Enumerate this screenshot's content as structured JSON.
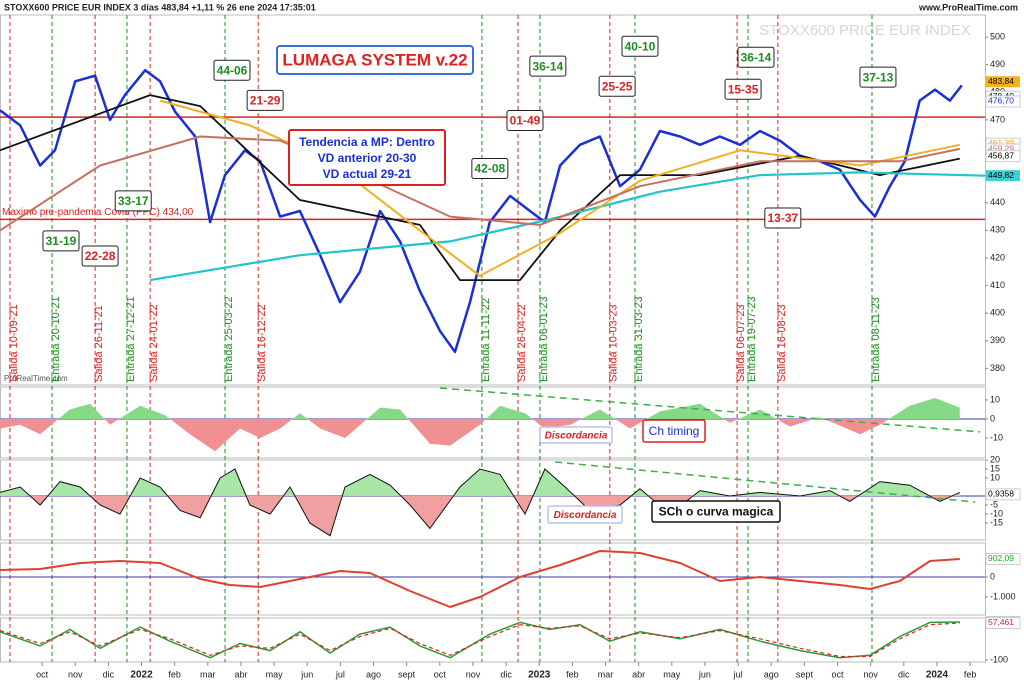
{
  "chart_data": [
    {
      "type": "line",
      "title": "STOXX600 PRICE EUR INDEX 3 días 483,84 +1,11 % 26 ene 2024 17:35:01",
      "source": "www.ProRealTime.com",
      "watermark": "STOXX600 PRICE EUR INDEX",
      "logo": "ProRealTime.com",
      "system_title": "LUMAGA SYSTEM v.22",
      "info": [
        "Tendencia a MP: Dentro",
        "VD anterior 20-30",
        "VD actual 29-21"
      ],
      "xlim": [
        -1.27,
        28.45
      ],
      "xticks": [
        {
          "value": 0,
          "label": "oct"
        },
        {
          "value": 1,
          "label": "nov"
        },
        {
          "value": 2,
          "label": "dic"
        },
        {
          "value": 3,
          "label": "2022"
        },
        {
          "value": 4,
          "label": "feb"
        },
        {
          "value": 5,
          "label": "mar"
        },
        {
          "value": 6,
          "label": "abr"
        },
        {
          "value": 7,
          "label": "may"
        },
        {
          "value": 8,
          "label": "jun"
        },
        {
          "value": 9,
          "label": "jul"
        },
        {
          "value": 10,
          "label": "ago"
        },
        {
          "value": 11,
          "label": "sept"
        },
        {
          "value": 12,
          "label": "oct"
        },
        {
          "value": 13,
          "label": "nov"
        },
        {
          "value": 14,
          "label": "dic"
        },
        {
          "value": 15,
          "label": "2023"
        },
        {
          "value": 16,
          "label": "feb"
        },
        {
          "value": 17,
          "label": "mar"
        },
        {
          "value": 18,
          "label": "abr"
        },
        {
          "value": 19,
          "label": "may"
        },
        {
          "value": 20,
          "label": "jun"
        },
        {
          "value": 21,
          "label": "jul"
        },
        {
          "value": 22,
          "label": "ago"
        },
        {
          "value": 23,
          "label": "sept"
        },
        {
          "value": 24,
          "label": "oct"
        },
        {
          "value": 25,
          "label": "nov"
        },
        {
          "value": 26,
          "label": "dic"
        },
        {
          "value": 27,
          "label": "2024"
        },
        {
          "value": 28,
          "label": "feb"
        }
      ],
      "ylim": [
        374,
        508
      ],
      "yticks": [
        380,
        390,
        400,
        410,
        420,
        430,
        440,
        450,
        460,
        470,
        480,
        490,
        500
      ],
      "series": [
        {
          "color": "#1a2fd6",
          "width": 2.5,
          "x": [
            -1.27,
            -0.66,
            -0.06,
            0.39,
            1.0,
            1.6,
            2.05,
            2.5,
            3.11,
            3.56,
            4.01,
            4.62,
            5.07,
            5.52,
            6.12,
            6.58,
            7.18,
            7.78,
            8.39,
            8.99,
            9.59,
            10.2,
            10.8,
            11.4,
            12.01,
            12.46,
            12.91,
            13.51,
            14.12,
            14.72,
            15.17,
            15.63,
            16.23,
            16.83,
            17.44,
            18.04,
            18.64,
            19.25,
            19.85,
            20.45,
            21.06,
            21.66,
            22.26,
            22.87,
            23.47,
            24.07,
            24.68,
            25.13,
            25.58,
            26.03,
            26.48,
            26.94,
            27.39,
            27.75
          ],
          "values": [
            473.5,
            468,
            453.5,
            459,
            484,
            486,
            470,
            479,
            488,
            484,
            473,
            464,
            433,
            450,
            459,
            455,
            435,
            437,
            421,
            404,
            415,
            437,
            426,
            408,
            393.5,
            386,
            404,
            433,
            442.5,
            437,
            433,
            453.5,
            461,
            464,
            446,
            452,
            466,
            464,
            461,
            464,
            461,
            466,
            462.5,
            457,
            455,
            452,
            441,
            435,
            446,
            455,
            477,
            481,
            477,
            482.5
          ]
        },
        {
          "color": "#111111",
          "width": 1.8,
          "x": [
            -1.27,
            3.26,
            4.77,
            7.78,
            11.4,
            12.61,
            14.42,
            15.63,
            17.44,
            19.85,
            22.87,
            25.28,
            27.69
          ],
          "values": [
            459,
            479,
            475,
            441,
            432,
            412,
            412,
            430,
            450,
            450,
            457,
            450,
            456
          ]
        },
        {
          "color": "#22c4c8",
          "width": 2.2,
          "x": [
            3.26,
            7.78,
            12.31,
            15.32,
            18.64,
            21.66,
            24.68,
            28.45
          ],
          "values": [
            412,
            421,
            426,
            434,
            444,
            450,
            451,
            449.8
          ]
        },
        {
          "color": "#f0b020",
          "width": 2,
          "x": [
            3.56,
            6.27,
            8.69,
            11.4,
            13.21,
            15.63,
            18.04,
            21.06,
            24.68,
            27.69
          ],
          "values": [
            477,
            468,
            455,
            430,
            413.5,
            429,
            448,
            459,
            453.5,
            461
          ]
        },
        {
          "color": "#c87060",
          "width": 2,
          "x": [
            -1.27,
            1.75,
            4.77,
            7.18,
            9.59,
            12.31,
            15.02,
            18.04,
            21.66,
            25.88,
            27.69
          ],
          "values": [
            430,
            453.5,
            464,
            462.5,
            450,
            435,
            432,
            446,
            455,
            455,
            459.5
          ]
        }
      ],
      "hlines": [
        {
          "value": 471,
          "color": "#e02020"
        },
        {
          "value": 434,
          "color": "#e02020",
          "label": "Maximo pre-pandemia Covid (PPC) 434,00"
        }
      ],
      "last_labels": [
        {
          "value": 483.84,
          "label": "483,84",
          "color": "#000000",
          "bg": "#f5b21a"
        },
        {
          "value": 478.4,
          "label": "478,40",
          "color": "#000000"
        },
        {
          "value": 476.7,
          "label": "476,70",
          "color": "#1a2fd6"
        },
        {
          "value": 461.39,
          "label": "461,39",
          "color": "#f0a020"
        },
        {
          "value": 459.29,
          "label": "459,29",
          "color": "#c87060"
        },
        {
          "value": 456.87,
          "label": "456,87",
          "color": "#000000"
        },
        {
          "value": 449.82,
          "label": "449,82",
          "color": "#000000",
          "bg": "#40d0d0"
        }
      ],
      "signals": [
        {
          "x": -0.97,
          "label": "Salida 10-09-21",
          "color": "#e02020"
        },
        {
          "x": 0.3,
          "label": "Entrada 20-10-21",
          "color": "#1e8c1e"
        },
        {
          "x": 1.6,
          "label": "Salida 26-11-21",
          "color": "#e02020"
        },
        {
          "x": 2.56,
          "label": "Entrada 27-12-21",
          "color": "#1e8c1e"
        },
        {
          "x": 3.26,
          "label": "Salida 24-01-22",
          "color": "#e02020"
        },
        {
          "x": 5.52,
          "label": "Entrada 25-03-22",
          "color": "#1e8c1e"
        },
        {
          "x": 6.52,
          "label": "Salida 16-12-22",
          "color": "#e02020"
        },
        {
          "x": 13.27,
          "label": "Entrada 11-11-22",
          "color": "#1e8c1e"
        },
        {
          "x": 14.36,
          "label": "Salida 26-04-22",
          "color": "#e02020"
        },
        {
          "x": 15.02,
          "label": "Entrada 06-01-23",
          "color": "#1e8c1e"
        },
        {
          "x": 17.13,
          "label": "Salida 10-03-23",
          "color": "#e02020"
        },
        {
          "x": 17.89,
          "label": "Entrada 31-03-23",
          "color": "#1e8c1e"
        },
        {
          "x": 20.97,
          "label": "Salida 06-07-23",
          "color": "#e02020"
        },
        {
          "x": 21.3,
          "label": "Entrada 19-07-23",
          "color": "#1e8c1e"
        },
        {
          "x": 22.2,
          "label": "Salida 16-08-23",
          "color": "#e02020"
        },
        {
          "x": 25.04,
          "label": "Entrada 08-11-23",
          "color": "#1e8c1e"
        }
      ],
      "boxes": [
        {
          "x": 0.57,
          "y": 426.2,
          "label": "31-19",
          "color": "#1e8c1e"
        },
        {
          "x": 1.75,
          "y": 420.7,
          "label": "22-28",
          "color": "#e02020"
        },
        {
          "x": 2.75,
          "y": 440.7,
          "label": "33-17",
          "color": "#1e8c1e"
        },
        {
          "x": 5.73,
          "y": 488,
          "label": "44-06",
          "color": "#1e8c1e"
        },
        {
          "x": 6.73,
          "y": 477.1,
          "label": "21-29",
          "color": "#e02020"
        },
        {
          "x": 14.57,
          "y": 469.8,
          "label": "01-49",
          "color": "#e02020"
        },
        {
          "x": 15.26,
          "y": 489.5,
          "label": "36-14",
          "color": "#1e8c1e"
        },
        {
          "x": 13.51,
          "y": 452.4,
          "label": "42-08",
          "color": "#1e8c1e"
        },
        {
          "x": 17.35,
          "y": 482.2,
          "label": "25-25",
          "color": "#e02020"
        },
        {
          "x": 18.04,
          "y": 496.7,
          "label": "40-10",
          "color": "#1e8c1e"
        },
        {
          "x": 21.15,
          "y": 481.1,
          "label": "15-35",
          "color": "#e02020"
        },
        {
          "x": 21.54,
          "y": 492.7,
          "label": "36-14",
          "color": "#1e8c1e"
        },
        {
          "x": 22.35,
          "y": 434.5,
          "label": "13-37",
          "color": "#e02020"
        },
        {
          "x": 25.22,
          "y": 485.5,
          "label": "37-13",
          "color": "#1e8c1e"
        }
      ]
    },
    {
      "type": "area",
      "ylim": [
        -20.5,
        16.8
      ],
      "yticks": [
        -10,
        0,
        10
      ],
      "up_color": "#86d986",
      "down_color": "#f09090",
      "x": [
        -1.27,
        -0.66,
        -0.06,
        0.84,
        1.45,
        2.05,
        2.96,
        3.71,
        4.46,
        5.22,
        5.97,
        6.58,
        7.18,
        7.78,
        8.39,
        9.14,
        10.2,
        10.8,
        11.7,
        12.31,
        13.21,
        13.82,
        14.57,
        15.17,
        15.93,
        16.83,
        17.74,
        18.64,
        19.85,
        20.75,
        21.66,
        22.56,
        23.47,
        24.68,
        25.28,
        26.18,
        26.94,
        27.69
      ],
      "values": [
        -5,
        -3,
        -8,
        5,
        8,
        -3,
        7,
        2,
        -8,
        -17,
        -5,
        -10,
        -5,
        3,
        -5,
        -10,
        6,
        5,
        -13,
        -14,
        -3,
        7,
        3,
        -5,
        -3,
        5,
        -5,
        4,
        8,
        -2,
        5,
        -4,
        1,
        -8,
        -3,
        7,
        11,
        6
      ],
      "trend": {
        "x": [
          12.01,
          28.3
        ],
        "values": [
          16.3,
          -6.8
        ]
      },
      "notes": [
        "Discordancia",
        "Ch timing"
      ]
    },
    {
      "type": "area",
      "ylim": [
        -24.4,
        20
      ],
      "yticks": [
        -15,
        -10,
        -5,
        0,
        10,
        15,
        20
      ],
      "up_color": "#a8e6a8",
      "down_color": "#f0a0a0",
      "line_color": "#111111",
      "x": [
        -1.27,
        -0.66,
        -0.06,
        0.54,
        1.15,
        1.75,
        2.35,
        2.96,
        3.56,
        4.16,
        4.77,
        5.37,
        5.82,
        6.27,
        6.88,
        7.48,
        8.08,
        8.69,
        9.14,
        9.89,
        10.5,
        11.1,
        11.7,
        12.61,
        13.21,
        13.82,
        14.57,
        15.17,
        15.78,
        16.53,
        17.44,
        18.04,
        18.94,
        19.85,
        20.75,
        21.66,
        22.87,
        23.77,
        24.37,
        25.28,
        26.18,
        27.09,
        27.69
      ],
      "values": [
        2,
        5,
        -5,
        8,
        5,
        -5,
        -10,
        10,
        5,
        -8,
        -12,
        10,
        15,
        -5,
        -10,
        5,
        -15,
        -22,
        5,
        12,
        6,
        -5,
        -18,
        5,
        15,
        12,
        -10,
        15,
        5,
        -8,
        -5,
        4,
        -10,
        3,
        0,
        2,
        0,
        3,
        -3,
        8,
        6,
        -3,
        2
      ],
      "trend": {
        "x": [
          15.48,
          28.15
        ],
        "values": [
          18.9,
          -3.3
        ]
      },
      "notes": [
        "Discordancia",
        "SCh o curva magica"
      ],
      "last_labels": [
        {
          "value": 0.9358,
          "label": "0,9358",
          "color": "#000000"
        }
      ]
    },
    {
      "type": "line",
      "ylim": [
        -1900,
        1700
      ],
      "yticks": [
        0,
        {
          "value": -1000,
          "label": "-1.000"
        }
      ],
      "series": [
        {
          "color": "#e04030",
          "width": 2,
          "x": [
            -1.27,
            -0.06,
            1.15,
            2.35,
            3.56,
            4.77,
            5.67,
            6.58,
            7.78,
            8.99,
            9.89,
            11.1,
            12.31,
            13.21,
            14.42,
            15.63,
            16.83,
            18.04,
            19.25,
            20.45,
            21.66,
            22.87,
            24.07,
            24.98,
            25.88,
            26.79,
            27.69
          ],
          "values": [
            350,
            400,
            700,
            800,
            700,
            -100,
            -400,
            -500,
            -100,
            300,
            200,
            -700,
            -1500,
            -1000,
            0,
            600,
            1300,
            1200,
            700,
            -200,
            0,
            -200,
            -400,
            -600,
            -200,
            800,
            902.09
          ]
        }
      ],
      "last_labels": [
        {
          "value": 902.09,
          "label": "902,09",
          "color": "#1fa81f"
        }
      ]
    },
    {
      "type": "line",
      "ylim": [
        -108.5,
        78.7
      ],
      "yticks": [
        -100
      ],
      "series": [
        {
          "color": "#2a9a3a",
          "width": 1.5,
          "x": [
            -1.27,
            -0.06,
            0.84,
            1.75,
            2.96,
            3.86,
            5.07,
            5.97,
            6.88,
            7.78,
            8.69,
            9.59,
            10.5,
            11.4,
            12.31,
            13.51,
            14.42,
            15.32,
            16.23,
            17.13,
            18.04,
            19.25,
            20.45,
            21.66,
            22.87,
            24.07,
            24.98,
            25.88,
            26.79,
            27.69
          ],
          "values": [
            20,
            -40,
            30,
            -50,
            40,
            -20,
            -90,
            -30,
            -60,
            20,
            -70,
            10,
            40,
            -40,
            -90,
            10,
            60,
            30,
            50,
            -20,
            20,
            -10,
            30,
            -20,
            -60,
            -90,
            -80,
            0,
            60,
            61.72
          ]
        },
        {
          "color": "#e02020",
          "width": 1.2,
          "dash": true,
          "x": [
            -1.27,
            -0.06,
            0.84,
            1.75,
            2.96,
            3.86,
            5.07,
            5.97,
            6.88,
            7.78,
            8.69,
            9.59,
            10.5,
            11.4,
            12.31,
            13.51,
            14.42,
            15.32,
            16.23,
            17.13,
            18.04,
            19.25,
            20.45,
            21.66,
            22.87,
            24.07,
            24.98,
            25.88,
            26.79,
            27.69
          ],
          "values": [
            25,
            -30,
            20,
            -40,
            30,
            -10,
            -80,
            -40,
            -50,
            10,
            -60,
            0,
            35,
            -30,
            -80,
            0,
            50,
            35,
            45,
            -10,
            15,
            -5,
            25,
            -10,
            -50,
            -85,
            -85,
            -10,
            50,
            57.461
          ]
        }
      ],
      "last_labels": [
        {
          "value": 61.72,
          "label": "61,720",
          "color": "#e02020"
        },
        {
          "value": 57.461,
          "label": "57,461",
          "color": "#e02020"
        }
      ]
    }
  ]
}
